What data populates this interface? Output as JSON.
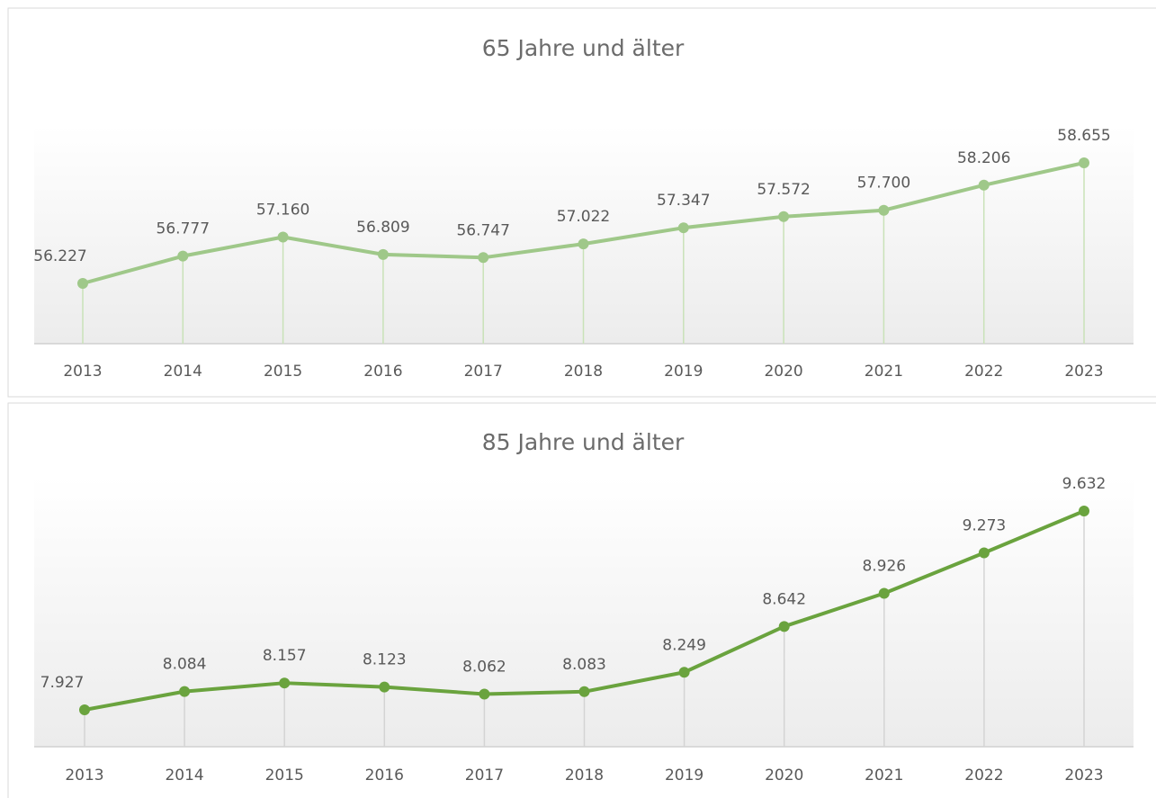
{
  "chart_data": [
    {
      "type": "line",
      "title": "65 Jahre und älter",
      "categories": [
        "2013",
        "2014",
        "2015",
        "2016",
        "2017",
        "2018",
        "2019",
        "2020",
        "2021",
        "2022",
        "2023"
      ],
      "values": [
        56227,
        56777,
        57160,
        56809,
        56747,
        57022,
        57347,
        57572,
        57700,
        58206,
        58655
      ],
      "value_labels": [
        "56.227",
        "56.777",
        "57.160",
        "56.809",
        "56.747",
        "57.022",
        "57.347",
        "57.572",
        "57.700",
        "58.206",
        "58.655"
      ],
      "color": "#9fc889",
      "drop_line_color": "#c9e2b8"
    },
    {
      "type": "line",
      "title": "85 Jahre und älter",
      "categories": [
        "2013",
        "2014",
        "2015",
        "2016",
        "2017",
        "2018",
        "2019",
        "2020",
        "2021",
        "2022",
        "2023"
      ],
      "values": [
        7927,
        8084,
        8157,
        8123,
        8062,
        8083,
        8249,
        8642,
        8926,
        9273,
        9632
      ],
      "value_labels": [
        "7.927",
        "8.084",
        "8.157",
        "8.123",
        "8.062",
        "8.083",
        "8.249",
        "8.642",
        "8.926",
        "9.273",
        "9.632"
      ],
      "color": "#6aa33e",
      "drop_line_color": "#d4d4d4"
    }
  ]
}
